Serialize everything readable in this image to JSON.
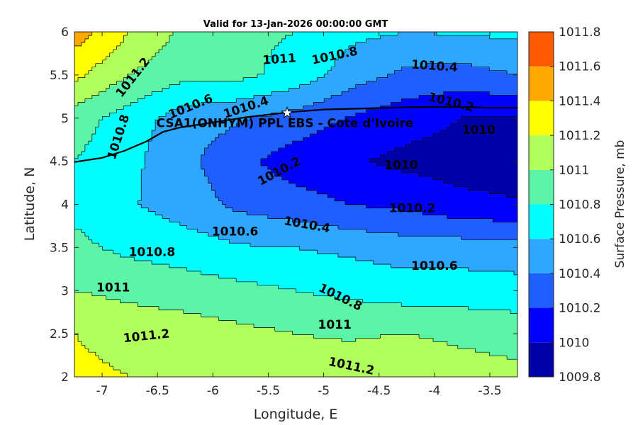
{
  "chart_data": {
    "type": "heatmap",
    "title": "Valid for 13-Jan-2026 00:00:00 GMT",
    "xlabel": "Longitude, E",
    "ylabel": "Latitude, N",
    "colorbar_label": "Surface Pressure, mb",
    "xlim": [
      -7.25,
      -3.25
    ],
    "ylim": [
      2,
      6
    ],
    "xticks": [
      -7,
      -6.5,
      -6,
      -5.5,
      -5,
      -4.5,
      -4,
      -3.5
    ],
    "xtick_labels": [
      "-7",
      "-6.5",
      "-6",
      "-5.5",
      "-5",
      "-4.5",
      "-4",
      "-3.5"
    ],
    "yticks": [
      2,
      2.5,
      3,
      3.5,
      4,
      4.5,
      5,
      5.5,
      6
    ],
    "ytick_labels": [
      "2",
      "2.5",
      "3",
      "3.5",
      "4",
      "4.5",
      "5",
      "5.5",
      "6"
    ],
    "levels": [
      1009.8,
      1010,
      1010.2,
      1010.4,
      1010.6,
      1010.8,
      1011,
      1011.2,
      1011.4,
      1011.6,
      1011.8
    ],
    "colorbar_tick_labels": [
      "1009.8",
      "1010",
      "1010.2",
      "1010.4",
      "1010.6",
      "1010.8",
      "1011",
      "1011.2",
      "1011.4",
      "1011.6",
      "1011.8"
    ],
    "level_colors": [
      "#0000a8",
      "#0000ff",
      "#1f5fff",
      "#2ea8ff",
      "#00ffff",
      "#5cf5a8",
      "#b0ff5a",
      "#ffff00",
      "#ffa800",
      "#ff5a00",
      "#ff0000"
    ],
    "grid_x": [
      -7.25,
      -6.75,
      -6.25,
      -5.75,
      -5.25,
      -4.75,
      -4.25,
      -3.75,
      -3.25
    ],
    "grid_y": [
      2,
      2.5,
      3,
      3.5,
      4,
      4.5,
      5,
      5.5,
      6
    ],
    "grid_values": [
      [
        1011.25,
        1011.2,
        1011.2,
        1011.15,
        1011.1,
        1011.1,
        1011.2,
        1011.1,
        1011.05
      ],
      [
        1011.2,
        1011.12,
        1011.1,
        1011.05,
        1011.0,
        1010.98,
        1011.0,
        1010.95,
        1010.92
      ],
      [
        1011.0,
        1010.95,
        1010.9,
        1010.85,
        1010.8,
        1010.75,
        1010.7,
        1010.7,
        1010.68
      ],
      [
        1010.85,
        1010.75,
        1010.7,
        1010.62,
        1010.6,
        1010.55,
        1010.5,
        1010.5,
        1010.48
      ],
      [
        1010.75,
        1010.62,
        1010.5,
        1010.35,
        1010.28,
        1010.2,
        1010.15,
        1010.05,
        1010.02
      ],
      [
        1010.8,
        1010.65,
        1010.45,
        1010.25,
        1010.1,
        1010.02,
        1009.95,
        1009.92,
        1009.9
      ],
      [
        1010.9,
        1010.7,
        1010.5,
        1010.42,
        1010.32,
        1010.18,
        1010.08,
        1010.0,
        1009.98
      ],
      [
        1011.25,
        1011.0,
        1010.85,
        1010.85,
        1010.72,
        1010.5,
        1010.35,
        1010.32,
        1010.4
      ],
      [
        1011.5,
        1011.2,
        1010.95,
        1010.85,
        1010.8,
        1010.65,
        1010.6,
        1010.62,
        1010.65
      ]
    ],
    "contour_labels": [
      {
        "text": "1011.2",
        "lon": -6.72,
        "lat": 5.47,
        "angle": -52
      },
      {
        "text": "1011",
        "lon": -5.4,
        "lat": 5.68,
        "angle": -4
      },
      {
        "text": "1010.8",
        "lon": -4.9,
        "lat": 5.72,
        "angle": -12
      },
      {
        "text": "1010.4",
        "lon": -4.0,
        "lat": 5.6,
        "angle": 4
      },
      {
        "text": "1010.2",
        "lon": -3.85,
        "lat": 5.18,
        "angle": 14
      },
      {
        "text": "1010.6",
        "lon": -6.2,
        "lat": 5.13,
        "angle": -22
      },
      {
        "text": "1010.4",
        "lon": -5.7,
        "lat": 5.12,
        "angle": -18
      },
      {
        "text": "1010.8",
        "lon": -6.85,
        "lat": 4.78,
        "angle": -72
      },
      {
        "text": "1010",
        "lon": -3.6,
        "lat": 4.86,
        "angle": 0
      },
      {
        "text": "1010.2",
        "lon": -5.4,
        "lat": 4.38,
        "angle": -28
      },
      {
        "text": "1010",
        "lon": -4.3,
        "lat": 4.45,
        "angle": 0
      },
      {
        "text": "1010.2",
        "lon": -4.2,
        "lat": 3.95,
        "angle": 0
      },
      {
        "text": "1010.4",
        "lon": -5.15,
        "lat": 3.76,
        "angle": 10
      },
      {
        "text": "1010.6",
        "lon": -5.8,
        "lat": 3.68,
        "angle": 0
      },
      {
        "text": "1010.8",
        "lon": -6.55,
        "lat": 3.44,
        "angle": 0
      },
      {
        "text": "1010.6",
        "lon": -4.0,
        "lat": 3.28,
        "angle": 0
      },
      {
        "text": "1011",
        "lon": -6.9,
        "lat": 3.03,
        "angle": 0
      },
      {
        "text": "1010.8",
        "lon": -4.85,
        "lat": 2.92,
        "angle": 26
      },
      {
        "text": "1011",
        "lon": -4.9,
        "lat": 2.6,
        "angle": 0
      },
      {
        "text": "1011.2",
        "lon": -6.6,
        "lat": 2.47,
        "angle": -6
      },
      {
        "text": "1011.2",
        "lon": -4.75,
        "lat": 2.12,
        "angle": 12
      }
    ],
    "site": {
      "label": "CSA1(ONHYM) PPL EBS  - Cote d'Ivoire",
      "lon": -5.33,
      "lat": 5.06
    },
    "coastline": [
      [
        -7.25,
        4.49
      ],
      [
        -7.0,
        4.54
      ],
      [
        -6.8,
        4.62
      ],
      [
        -6.6,
        4.73
      ],
      [
        -6.45,
        4.84
      ],
      [
        -6.3,
        4.89
      ],
      [
        -6.1,
        4.93
      ],
      [
        -5.9,
        4.97
      ],
      [
        -5.7,
        5.01
      ],
      [
        -5.5,
        5.04
      ],
      [
        -5.3,
        5.07
      ],
      [
        -5.0,
        5.1
      ],
      [
        -4.7,
        5.11
      ],
      [
        -4.4,
        5.12
      ],
      [
        -4.1,
        5.13
      ],
      [
        -3.8,
        5.13
      ],
      [
        -3.5,
        5.12
      ],
      [
        -3.25,
        5.12
      ]
    ]
  }
}
